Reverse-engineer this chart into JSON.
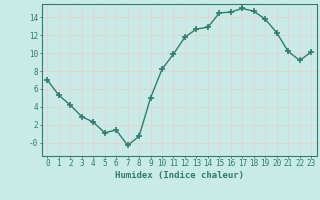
{
  "x": [
    0,
    1,
    2,
    3,
    4,
    5,
    6,
    7,
    8,
    9,
    10,
    11,
    12,
    13,
    14,
    15,
    16,
    17,
    18,
    19,
    20,
    21,
    22,
    23
  ],
  "y": [
    7,
    5.3,
    4.2,
    2.9,
    2.3,
    1.1,
    1.4,
    -0.3,
    0.7,
    5.0,
    8.2,
    9.9,
    11.8,
    12.7,
    12.9,
    14.5,
    14.6,
    15.0,
    14.7,
    13.8,
    12.3,
    10.2,
    9.2,
    10.1
  ],
  "line_color": "#2E7D6E",
  "marker": "+",
  "marker_size": 4,
  "linewidth": 1.0,
  "xlabel": "Humidex (Indice chaleur)",
  "xlim": [
    -0.5,
    23.5
  ],
  "ylim": [
    -1.5,
    15.5
  ],
  "yticks": [
    0,
    2,
    4,
    6,
    8,
    10,
    12,
    14
  ],
  "ytick_labels": [
    "-0",
    "2",
    "4",
    "6",
    "8",
    "10",
    "12",
    "14"
  ],
  "xticks": [
    0,
    1,
    2,
    3,
    4,
    5,
    6,
    7,
    8,
    9,
    10,
    11,
    12,
    13,
    14,
    15,
    16,
    17,
    18,
    19,
    20,
    21,
    22,
    23
  ],
  "bg_color": "#C8EBE8",
  "grid_color": "#E8D0D0",
  "tick_color": "#2E7D6E",
  "xlabel_fontsize": 6.5,
  "tick_fontsize": 5.5
}
